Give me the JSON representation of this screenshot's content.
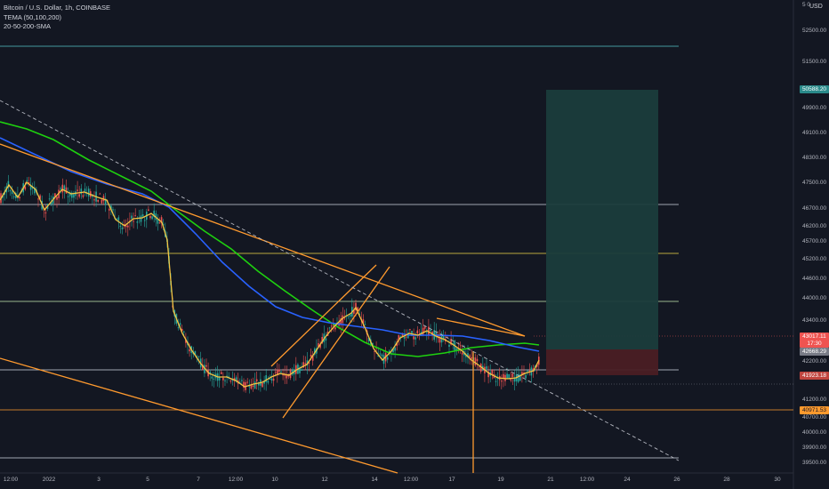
{
  "legend": {
    "symbol": "Bitcoin / U.S. Dollar, 1h, COINBASE",
    "indicator_tema": "TEMA (50,100,200)",
    "indicator_sma": "20-50-200-SMA"
  },
  "price_scale": {
    "currency": "USD",
    "top_clipped": "5 0",
    "ticks": [
      "52500.00",
      "51500.00",
      "49900.00",
      "49100.00",
      "48300.00",
      "47500.00",
      "46700.00",
      "46200.00",
      "45700.00",
      "45200.00",
      "44600.00",
      "44000.00",
      "43400.00",
      "42200.00",
      "41700.00",
      "41200.00",
      "40700.00",
      "40000.00",
      "39900.00",
      "39500.00"
    ],
    "tags": {
      "target": "50588.20",
      "current": "43017.11",
      "countdown": "17:30",
      "mid": "42668.29",
      "stop": "41923.18",
      "support": "40971.53"
    }
  },
  "time_scale": {
    "labels": [
      "12:00",
      "2022",
      "3",
      "5",
      "7",
      "12:00",
      "10",
      "12",
      "14",
      "12:00",
      "17",
      "19",
      "21",
      "12:00",
      "24",
      "26",
      "28",
      "30"
    ]
  },
  "colors": {
    "background": "#131722",
    "candle_up": "#26a69a",
    "candle_down": "#ef5350",
    "tema": "#f5c542",
    "sma_fast": "#2962ff",
    "sma_slow": "#1ed10f",
    "trendline": "#ff9a2e",
    "target_zone": "#1a3c3c",
    "stop_zone": "#4a1e24"
  }
}
